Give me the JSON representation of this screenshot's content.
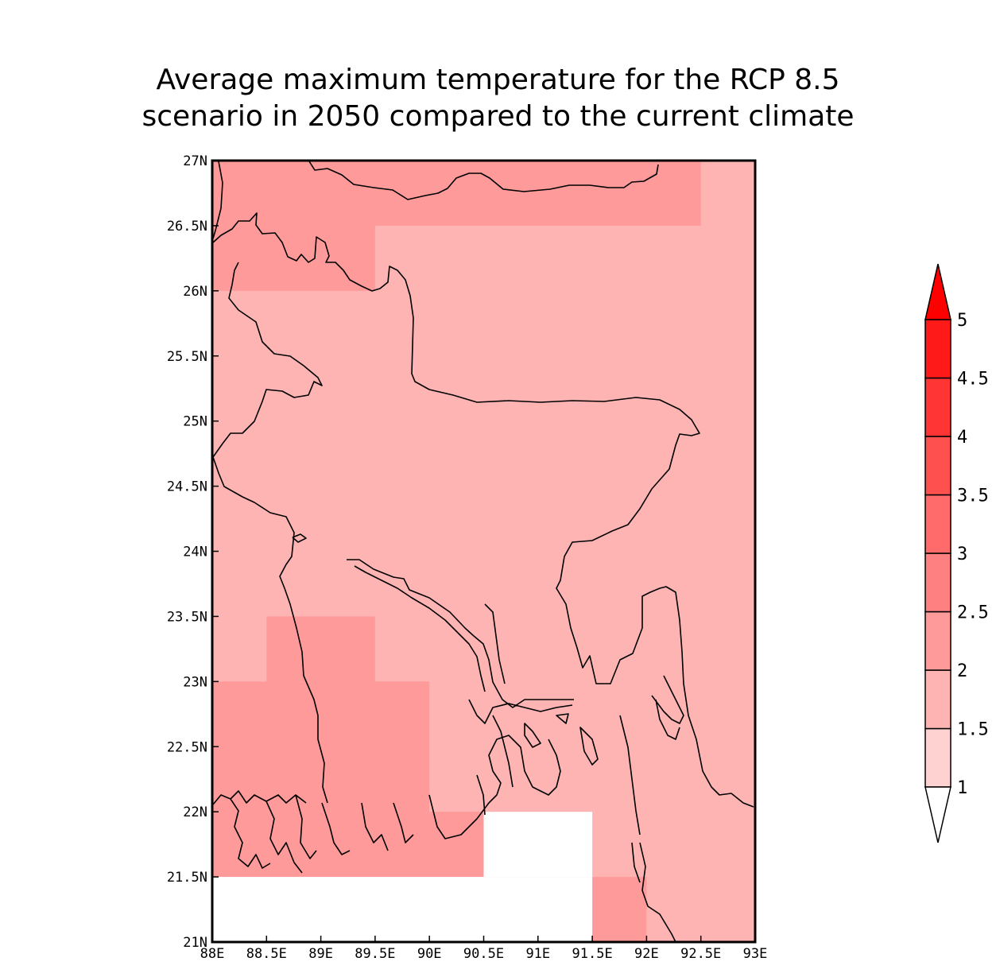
{
  "title": {
    "line1": "Average maximum temperature for the RCP 8.5",
    "line2": "scenario in 2050 compared to the current climate"
  },
  "chart_data": {
    "type": "heatmap",
    "map_region": "Bangladesh",
    "cell_size_deg": 0.5,
    "xlim": [
      88,
      93
    ],
    "ylim": [
      21,
      27
    ],
    "x_ticks": [
      "88E",
      "88.5E",
      "89E",
      "89.5E",
      "90E",
      "90.5E",
      "91E",
      "91.5E",
      "92E",
      "92.5E",
      "93E"
    ],
    "y_ticks": [
      "21N",
      "21.5N",
      "22N",
      "22.5N",
      "23N",
      "23.5N",
      "24N",
      "24.5N",
      "25N",
      "25.5N",
      "26N",
      "26.5N",
      "27N"
    ],
    "default_level": "1.5-2",
    "level_colors": {
      "1-1.5": "#ffd2d2",
      "1.5-2": "#ffb4b4",
      "2-2.5": "#ff9a9a",
      "2.5-3": "#ff8080",
      "3-3.5": "#ff6a6a",
      "3.5-4": "#ff5050",
      "4-4.5": "#ff3535",
      "4.5-5": "#ff1a1a",
      "over_5": "#ff0000",
      "missing": "#ffffff"
    },
    "regions": [
      {
        "lon": [
          88,
          89.5
        ],
        "lat": [
          26,
          26.5
        ],
        "level": "2-2.5"
      },
      {
        "lon": [
          88,
          92.5
        ],
        "lat": [
          26.5,
          27
        ],
        "level": "2-2.5"
      },
      {
        "lon": [
          88.5,
          89.5
        ],
        "lat": [
          23,
          23.5
        ],
        "level": "2-2.5"
      },
      {
        "lon": [
          88,
          90
        ],
        "lat": [
          22,
          23
        ],
        "level": "2-2.5"
      },
      {
        "lon": [
          88,
          90.5
        ],
        "lat": [
          21.5,
          22
        ],
        "level": "2-2.5"
      },
      {
        "lon": [
          91.5,
          92
        ],
        "lat": [
          21,
          21.5
        ],
        "level": "2-2.5"
      },
      {
        "lon": [
          90.5,
          91.5
        ],
        "lat": [
          21.5,
          22
        ],
        "level": "missing"
      },
      {
        "lon": [
          88,
          91.5
        ],
        "lat": [
          21,
          21.5
        ],
        "level": "missing"
      }
    ],
    "colorbar": {
      "levels": [
        "1",
        "1.5",
        "2",
        "2.5",
        "3",
        "3.5",
        "4",
        "4.5",
        "5"
      ],
      "colors": [
        "#ffd2d2",
        "#ffb4b4",
        "#ff9a9a",
        "#ff8080",
        "#ff6a6a",
        "#ff5050",
        "#ff3535",
        "#ff1a1a"
      ],
      "under_color": "#ffffff",
      "over_color": "#ff0000"
    }
  }
}
